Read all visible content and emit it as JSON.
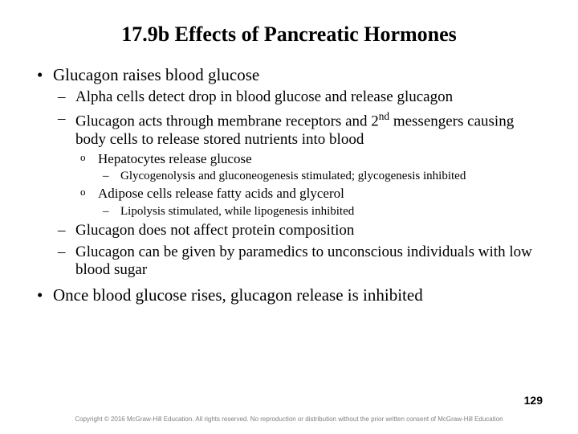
{
  "title": "17.9b Effects of Pancreatic Hormones",
  "b1": "Glucagon raises blood glucose",
  "b1a": "Alpha cells detect drop in blood glucose and release glucagon",
  "b1b_pre": "Glucagon acts through membrane receptors and 2",
  "b1b_sup": "nd",
  "b1b_post": " messengers causing body cells to release stored nutrients into blood",
  "b1b_i": "Hepatocytes release glucose",
  "b1b_i_1": "Glycogenolysis and gluconeogenesis stimulated; glycogenesis inhibited",
  "b1b_ii": "Adipose cells release fatty acids and  glycerol",
  "b1b_ii_1": "Lipolysis stimulated, while lipogenesis inhibited",
  "b1c": "Glucagon does not affect protein composition",
  "b1d": "Glucagon can be given by paramedics to unconscious individuals with low blood sugar",
  "b2": "Once blood glucose rises, glucagon release is inhibited",
  "page_number": "129",
  "copyright": "Copyright © 2016 McGraw-Hill Education. All rights reserved. No reproduction or distribution without the prior written consent of McGraw-Hill Education"
}
